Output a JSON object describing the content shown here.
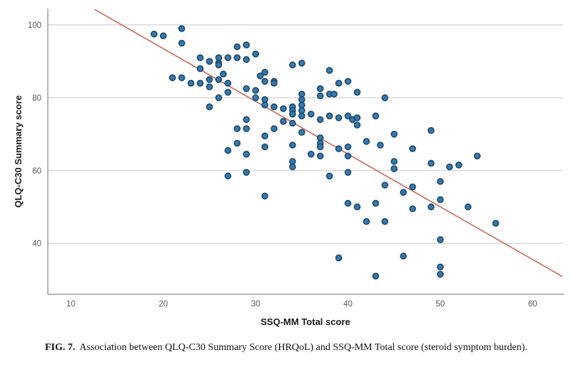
{
  "figure": {
    "caption_label": "FIG. 7.",
    "caption_text": "Association between QLQ-C30 Summary Score (HRQoL) and SSQ-MM Total score (steroid symptom burden)."
  },
  "chart_data": {
    "type": "scatter",
    "title": "",
    "xlabel": "SSQ-MM Total score",
    "ylabel": "QLQ-C30 Summary score",
    "x_ticks": [
      10,
      20,
      30,
      40,
      50,
      60
    ],
    "y_ticks": [
      40,
      60,
      80,
      100
    ],
    "xlim": [
      7.5,
      63.3
    ],
    "ylim": [
      26,
      104.5
    ],
    "grid": "horizontal-only",
    "legend": "none",
    "trendline": {
      "x1": 12.55,
      "y1": 104.3,
      "x2": 63.2,
      "y2": 30.9
    },
    "colors": {
      "point_fill": "#3579b1",
      "point_stroke": "#1d4866",
      "trendline": "#c96a5e",
      "grid": "#c9c9c9",
      "axis": "#8f8f8f",
      "tick_label": "#595959",
      "axis_title": "#1a1a1a"
    },
    "points": [
      [
        19,
        97.5
      ],
      [
        20,
        97
      ],
      [
        22,
        99
      ],
      [
        22,
        95
      ],
      [
        24,
        91
      ],
      [
        24,
        88
      ],
      [
        25,
        90
      ],
      [
        26,
        91
      ],
      [
        26,
        89.5
      ],
      [
        26,
        89
      ],
      [
        21,
        85.5
      ],
      [
        22,
        85.5
      ],
      [
        23,
        84
      ],
      [
        24,
        84
      ],
      [
        25,
        85
      ],
      [
        26,
        85
      ],
      [
        25,
        83
      ],
      [
        26,
        80
      ],
      [
        25,
        77.5
      ],
      [
        28,
        94
      ],
      [
        29,
        94.5
      ],
      [
        30,
        92
      ],
      [
        27,
        91
      ],
      [
        28,
        91
      ],
      [
        29,
        90.5
      ],
      [
        26.5,
        86.5
      ],
      [
        31,
        87
      ],
      [
        30.5,
        86
      ],
      [
        32,
        84.5
      ],
      [
        31,
        84.5
      ],
      [
        32,
        84
      ],
      [
        27,
        84
      ],
      [
        27,
        81.5
      ],
      [
        29,
        82.5
      ],
      [
        30,
        82
      ],
      [
        30,
        80
      ],
      [
        31,
        79.5
      ],
      [
        31,
        78
      ],
      [
        32,
        77.5
      ],
      [
        33,
        77
      ],
      [
        34,
        77.5
      ],
      [
        34,
        76.5
      ],
      [
        34,
        75.5
      ],
      [
        33,
        73.5
      ],
      [
        34,
        73
      ],
      [
        34,
        89
      ],
      [
        35,
        89.5
      ],
      [
        38,
        87.5
      ],
      [
        35,
        81
      ],
      [
        35,
        79.5
      ],
      [
        35,
        78
      ],
      [
        35,
        76.5
      ],
      [
        35,
        75
      ],
      [
        37,
        82.5
      ],
      [
        37,
        80.5
      ],
      [
        38,
        81
      ],
      [
        38.5,
        81
      ],
      [
        39,
        84
      ],
      [
        40,
        84.5
      ],
      [
        41,
        81.5
      ],
      [
        44,
        80
      ],
      [
        36,
        75.5
      ],
      [
        37,
        74
      ],
      [
        38,
        75
      ],
      [
        39,
        74.5
      ],
      [
        40,
        75
      ],
      [
        40.5,
        74
      ],
      [
        41,
        74.5
      ],
      [
        41,
        72.5
      ],
      [
        43,
        75
      ],
      [
        29,
        74
      ],
      [
        43.5,
        67
      ],
      [
        42,
        68
      ],
      [
        45,
        70
      ],
      [
        49,
        71
      ],
      [
        47,
        66
      ],
      [
        28,
        71.5
      ],
      [
        29,
        71.5
      ],
      [
        32,
        71.5
      ],
      [
        31,
        69.5
      ],
      [
        35,
        70.5
      ],
      [
        37,
        69
      ],
      [
        37,
        67.5
      ],
      [
        37,
        66.5
      ],
      [
        37,
        64
      ],
      [
        36,
        64.5
      ],
      [
        28,
        67.5
      ],
      [
        27,
        65.5
      ],
      [
        29,
        64.5
      ],
      [
        34,
        67
      ],
      [
        39,
        66
      ],
      [
        40,
        66.5
      ],
      [
        40,
        64
      ],
      [
        34,
        62.5
      ],
      [
        34,
        61
      ],
      [
        31,
        66.5
      ],
      [
        27,
        58.5
      ],
      [
        29,
        59.5
      ],
      [
        38,
        58.5
      ],
      [
        40,
        59.5
      ],
      [
        31,
        53
      ],
      [
        40,
        51
      ],
      [
        41,
        50
      ],
      [
        43,
        51
      ],
      [
        42,
        46
      ],
      [
        44,
        46
      ],
      [
        39,
        36
      ],
      [
        43,
        31
      ],
      [
        45,
        62.5
      ],
      [
        45,
        60.5
      ],
      [
        44,
        56
      ],
      [
        49,
        62
      ],
      [
        51,
        61
      ],
      [
        52,
        61.5
      ],
      [
        54,
        64
      ],
      [
        47,
        55.5
      ],
      [
        46,
        54
      ],
      [
        50,
        57
      ],
      [
        50,
        52
      ],
      [
        49,
        50
      ],
      [
        47,
        49.5
      ],
      [
        53,
        50
      ],
      [
        56,
        45.5
      ],
      [
        50,
        41
      ],
      [
        46,
        36.5
      ],
      [
        50,
        33.5
      ],
      [
        50,
        31.5
      ]
    ]
  }
}
